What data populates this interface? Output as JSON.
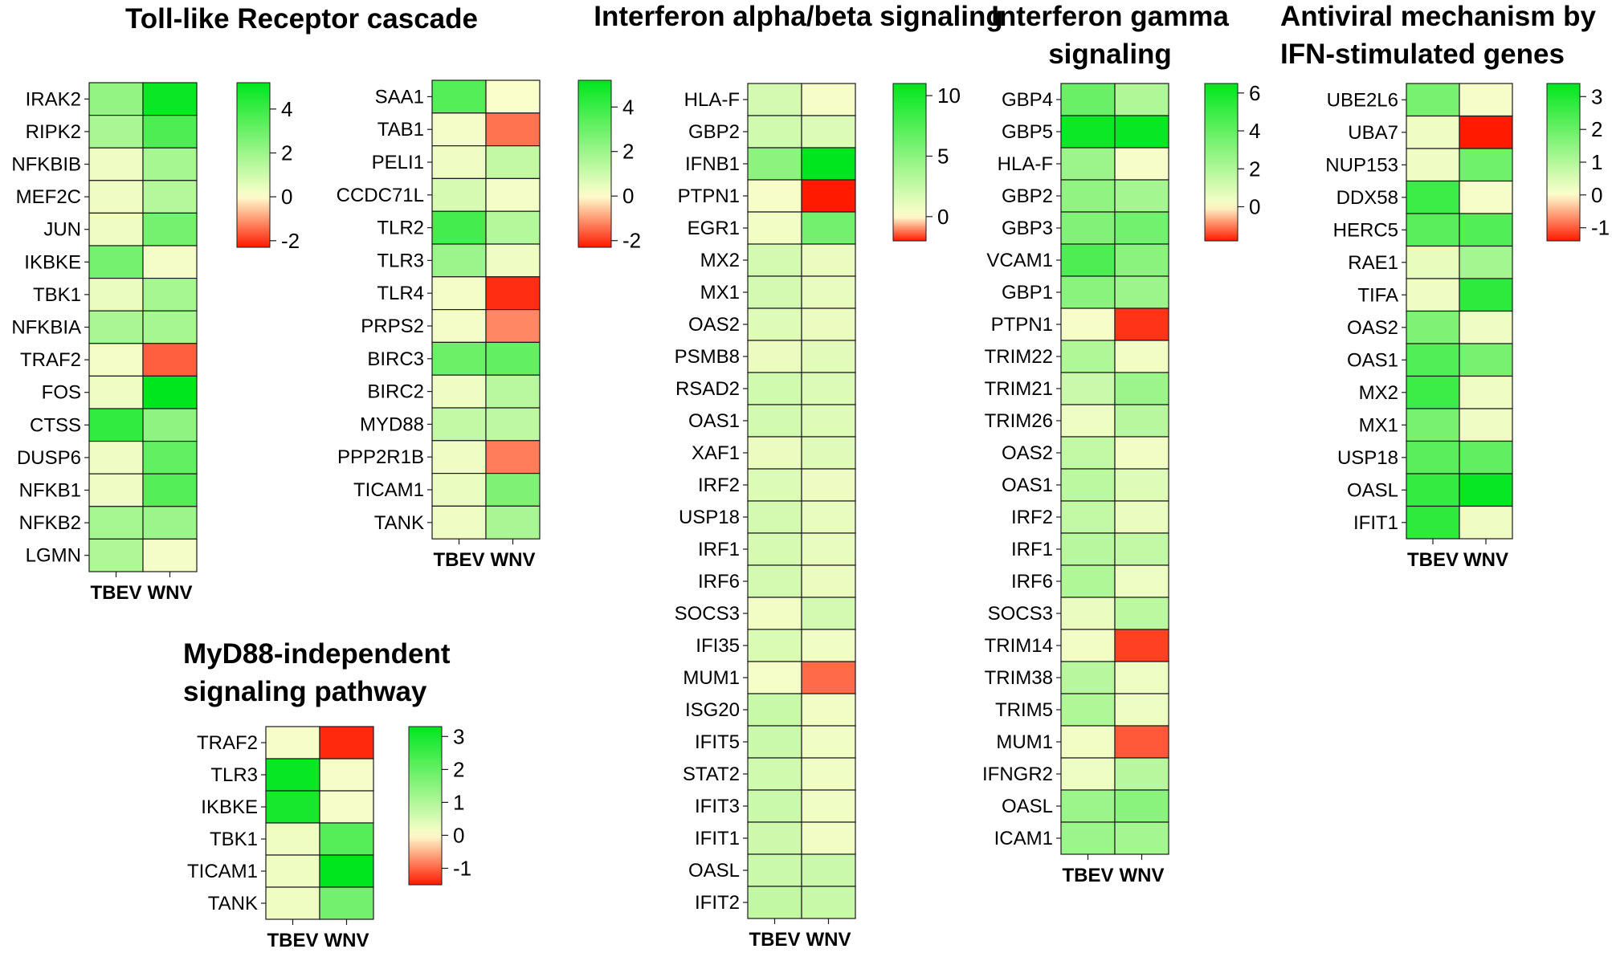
{
  "color_scale": {
    "negative": "#ff1a00",
    "zero": "#fefece",
    "positive": "#00e61e"
  },
  "chart_data": [
    {
      "type": "heatmap",
      "title": "Toll-like Receptor cascade",
      "columns": [
        "TBEV",
        "WNV"
      ],
      "rows": [
        "IRAK2",
        "RIPK2",
        "NFKBIB",
        "MEF2C",
        "JUN",
        "IKBKE",
        "TBK1",
        "NFKBIA",
        "TRAF2",
        "FOS",
        "CTSS",
        "DUSP6",
        "NFKB1",
        "NFKB2",
        "LGMN"
      ],
      "values": [
        [
          2.2,
          5.0
        ],
        [
          1.7,
          3.6
        ],
        [
          0.3,
          1.8
        ],
        [
          0.3,
          1.5
        ],
        [
          0.3,
          2.8
        ],
        [
          2.8,
          0.2
        ],
        [
          0.4,
          1.8
        ],
        [
          1.7,
          1.8
        ],
        [
          0.2,
          -1.6
        ],
        [
          0.3,
          5.5
        ],
        [
          4.2,
          2.3
        ],
        [
          0.3,
          3.2
        ],
        [
          0.3,
          3.5
        ],
        [
          1.8,
          2.0
        ],
        [
          1.6,
          0.2
        ]
      ],
      "colorbar": {
        "min": -2.3,
        "max": 5.2,
        "ticks": [
          4,
          2,
          0,
          -2
        ]
      }
    },
    {
      "type": "heatmap",
      "title": "",
      "columns": [
        "TBEV",
        "WNV"
      ],
      "rows": [
        "SAA1",
        "TAB1",
        "PELI1",
        "CCDC71L",
        "TLR2",
        "TLR3",
        "TLR4",
        "PRPS2",
        "BIRC3",
        "BIRC2",
        "MYD88",
        "PPP2R1B",
        "TICAM1",
        "TANK"
      ],
      "values": [
        [
          3.5,
          0.1
        ],
        [
          0.2,
          -1.4
        ],
        [
          0.3,
          1.2
        ],
        [
          0.8,
          0.2
        ],
        [
          3.8,
          1.5
        ],
        [
          2.0,
          0.3
        ],
        [
          0.2,
          -2.1
        ],
        [
          0.2,
          -1.2
        ],
        [
          3.0,
          3.2
        ],
        [
          0.3,
          1.4
        ],
        [
          1.2,
          1.3
        ],
        [
          0.3,
          -1.3
        ],
        [
          0.4,
          2.6
        ],
        [
          0.3,
          1.7
        ]
      ],
      "colorbar": {
        "min": -2.3,
        "max": 5.2,
        "ticks": [
          4,
          2,
          0,
          -2
        ]
      }
    },
    {
      "type": "heatmap",
      "title": "MyD88-independent signaling pathway",
      "columns": [
        "TBEV",
        "WNV"
      ],
      "rows": [
        "TRAF2",
        "TLR3",
        "IKBKE",
        "TBK1",
        "TICAM1",
        "TANK"
      ],
      "values": [
        [
          0.1,
          -1.4
        ],
        [
          3.2,
          0.1
        ],
        [
          3.0,
          0.1
        ],
        [
          0.2,
          2.2
        ],
        [
          0.2,
          3.3
        ],
        [
          0.2,
          1.8
        ]
      ],
      "colorbar": {
        "min": -1.5,
        "max": 3.3,
        "ticks": [
          3,
          2,
          1,
          0,
          -1
        ]
      }
    },
    {
      "type": "heatmap",
      "title": "Interferon alpha/beta signaling",
      "columns": [
        "TBEV",
        "WNV"
      ],
      "rows": [
        "HLA-F",
        "GBP2",
        "IFNB1",
        "PTPN1",
        "EGR1",
        "MX2",
        "MX1",
        "OAS2",
        "PSMB8",
        "RSAD2",
        "OAS1",
        "XAF1",
        "IRF2",
        "USP18",
        "IRF1",
        "IRF6",
        "SOCS3",
        "IFI35",
        "MUM1",
        "ISG20",
        "IFIT5",
        "STAT2",
        "IFIT3",
        "IFIT1",
        "OASL",
        "IFIT2"
      ],
      "values": [
        [
          1.8,
          0.3
        ],
        [
          2.0,
          1.5
        ],
        [
          5.0,
          11.0
        ],
        [
          0.3,
          -2.0
        ],
        [
          0.5,
          6.0
        ],
        [
          1.8,
          0.8
        ],
        [
          1.8,
          1.0
        ],
        [
          1.4,
          0.8
        ],
        [
          0.8,
          1.2
        ],
        [
          2.0,
          1.5
        ],
        [
          1.9,
          1.4
        ],
        [
          0.8,
          1.3
        ],
        [
          1.5,
          0.7
        ],
        [
          1.8,
          1.0
        ],
        [
          1.7,
          1.0
        ],
        [
          1.8,
          0.8
        ],
        [
          0.5,
          1.8
        ],
        [
          1.6,
          0.6
        ],
        [
          0.4,
          -1.3
        ],
        [
          2.4,
          0.5
        ],
        [
          2.2,
          0.6
        ],
        [
          2.0,
          0.6
        ],
        [
          2.2,
          0.6
        ],
        [
          2.1,
          0.5
        ],
        [
          2.2,
          2.2
        ],
        [
          2.6,
          2.4
        ]
      ],
      "colorbar": {
        "min": -2.0,
        "max": 11.0,
        "ticks": [
          10,
          5,
          0
        ]
      }
    },
    {
      "type": "heatmap",
      "title": "Interferon gamma signaling",
      "columns": [
        "TBEV",
        "WNV"
      ],
      "rows": [
        "GBP4",
        "GBP5",
        "HLA-F",
        "GBP2",
        "GBP3",
        "VCAM1",
        "GBP1",
        "PTPN1",
        "TRIM22",
        "TRIM21",
        "TRIM26",
        "OAS2",
        "OAS1",
        "IRF2",
        "IRF1",
        "IRF6",
        "SOCS3",
        "TRIM14",
        "TRIM38",
        "TRIM5",
        "MUM1",
        "IFNGR2",
        "OASL",
        "ICAM1"
      ],
      "values": [
        [
          3.8,
          2.0
        ],
        [
          6.2,
          6.3
        ],
        [
          2.5,
          0.2
        ],
        [
          2.8,
          2.3
        ],
        [
          3.2,
          3.6
        ],
        [
          4.5,
          3.0
        ],
        [
          3.0,
          2.5
        ],
        [
          0.2,
          -1.6
        ],
        [
          2.0,
          0.3
        ],
        [
          1.3,
          2.5
        ],
        [
          0.4,
          1.8
        ],
        [
          1.5,
          0.3
        ],
        [
          1.7,
          0.8
        ],
        [
          1.5,
          0.5
        ],
        [
          1.8,
          1.5
        ],
        [
          2.0,
          0.4
        ],
        [
          0.5,
          1.7
        ],
        [
          0.3,
          -1.5
        ],
        [
          1.8,
          0.4
        ],
        [
          2.0,
          0.4
        ],
        [
          0.3,
          -1.3
        ],
        [
          0.4,
          1.8
        ],
        [
          2.5,
          3.0
        ],
        [
          2.5,
          2.3
        ]
      ],
      "colorbar": {
        "min": -1.8,
        "max": 6.5,
        "ticks": [
          6,
          4,
          2,
          0
        ]
      }
    },
    {
      "type": "heatmap",
      "title": "Antiviral mechanism by IFN-stimulated genes",
      "columns": [
        "TBEV",
        "WNV"
      ],
      "rows": [
        "UBE2L6",
        "UBA7",
        "NUP153",
        "DDX58",
        "HERC5",
        "RAE1",
        "TIFA",
        "OAS2",
        "OAS1",
        "MX2",
        "MX1",
        "USP18",
        "OASL",
        "IFIT1"
      ],
      "values": [
        [
          1.8,
          0.1
        ],
        [
          0.2,
          -1.4
        ],
        [
          0.2,
          1.9
        ],
        [
          2.6,
          0.1
        ],
        [
          2.2,
          2.3
        ],
        [
          0.3,
          1.2
        ],
        [
          0.2,
          2.8
        ],
        [
          1.7,
          0.2
        ],
        [
          2.3,
          1.8
        ],
        [
          2.6,
          0.2
        ],
        [
          1.8,
          0.2
        ],
        [
          2.2,
          2.1
        ],
        [
          2.7,
          3.3
        ],
        [
          2.8,
          0.2
        ]
      ],
      "colorbar": {
        "min": -1.4,
        "max": 3.4,
        "ticks": [
          3,
          2,
          1,
          0,
          -1
        ]
      }
    }
  ]
}
